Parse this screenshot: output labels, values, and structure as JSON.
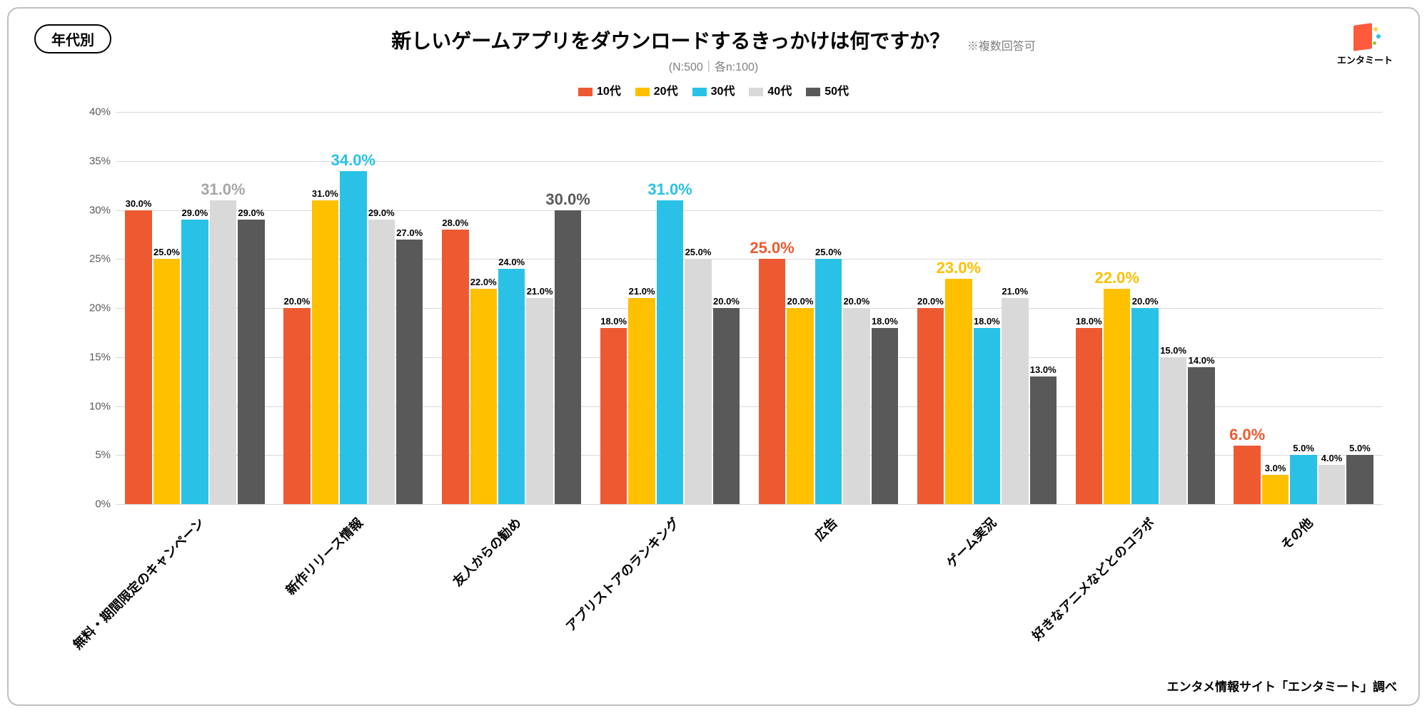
{
  "badge": "年代別",
  "title": "新しいゲームアプリをダウンロードするきっかけは何ですか？",
  "note": "※複数回答可",
  "subtitle": "(N:500｜各n:100)",
  "logo_text": "エンタミート",
  "credit": "エンタメ情報サイト「エンタミート」調べ",
  "chart": {
    "type": "grouped-bar",
    "ylim": [
      0,
      40
    ],
    "ytick_step": 5,
    "y_suffix": "%",
    "grid_color": "#d9d9d9",
    "background": "#ffffff",
    "series": [
      {
        "name": "10代",
        "color": "#ed5a32"
      },
      {
        "name": "20代",
        "color": "#ffc000"
      },
      {
        "name": "30代",
        "color": "#29c2e6"
      },
      {
        "name": "40代",
        "color": "#d9d9d9"
      },
      {
        "name": "50代",
        "color": "#595959"
      }
    ],
    "categories": [
      "無料・期間限定のキャンペーン",
      "新作リリース情報",
      "友人からの勧め",
      "アプリストアのランキング",
      "広告",
      "ゲーム実況",
      "好きなアニメなどとのコラボ",
      "その他"
    ],
    "values": [
      [
        30.0,
        25.0,
        29.0,
        31.0,
        29.0
      ],
      [
        20.0,
        31.0,
        34.0,
        29.0,
        27.0
      ],
      [
        28.0,
        22.0,
        24.0,
        21.0,
        30.0
      ],
      [
        18.0,
        21.0,
        31.0,
        25.0,
        20.0
      ],
      [
        25.0,
        20.0,
        25.0,
        20.0,
        18.0
      ],
      [
        20.0,
        23.0,
        18.0,
        21.0,
        13.0
      ],
      [
        18.0,
        22.0,
        20.0,
        15.0,
        14.0
      ],
      [
        6.0,
        3.0,
        5.0,
        4.0,
        5.0
      ]
    ],
    "highlight": [
      3,
      2,
      4,
      2,
      0,
      1,
      1,
      0
    ],
    "highlight_text_colors": [
      "#ed5a32",
      "#ffc000",
      "#29c2e6",
      "#a6a6a6",
      "#595959"
    ],
    "label_fontsize_small": 13,
    "label_fontsize_big": 22,
    "xlabel_fontsize": 18,
    "ytick_fontsize": 15
  }
}
